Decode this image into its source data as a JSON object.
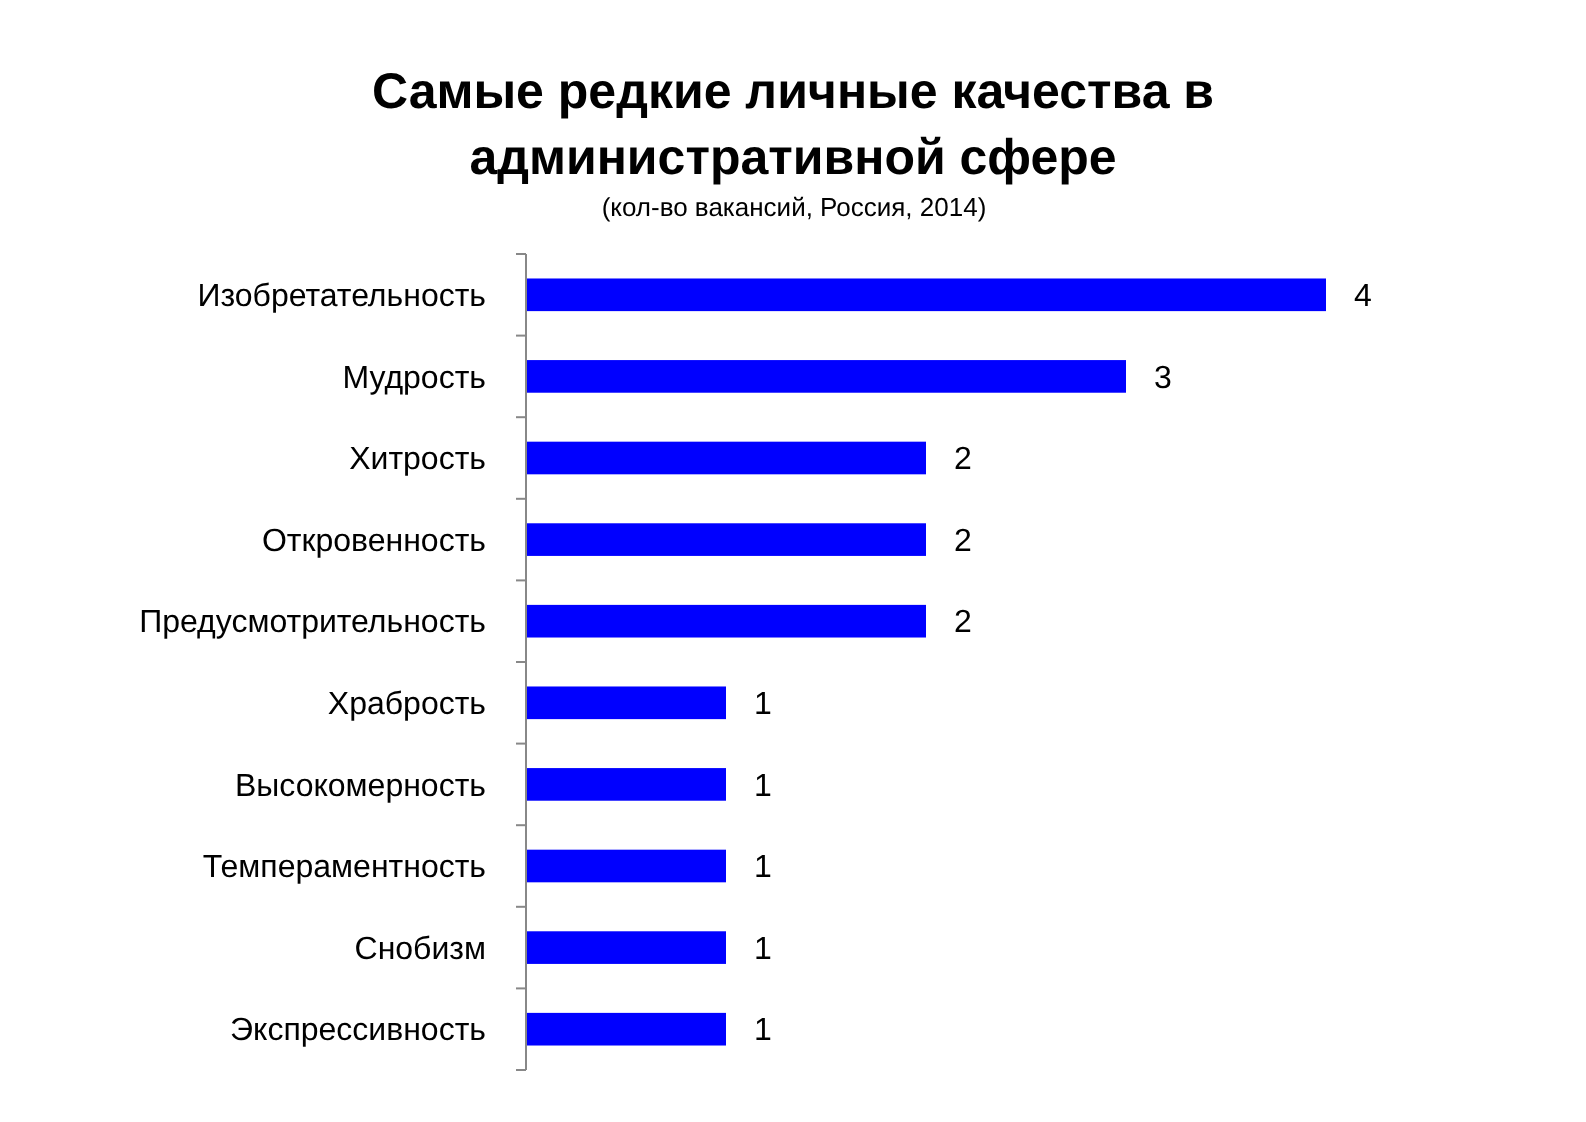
{
  "chart_data": {
    "type": "bar",
    "orientation": "horizontal",
    "title": "Самые редкие личные качества в административной сфере",
    "subtitle": "(кол-во вакансий, Россия, 2014)",
    "categories": [
      "Изобретательность",
      "Мудрость",
      "Хитрость",
      "Откровенность",
      "Предусмотрительность",
      "Храбрость",
      "Высокомерность",
      "Темпераментность",
      "Снобизм",
      "Экспрессивность"
    ],
    "values": [
      4,
      3,
      2,
      2,
      2,
      1,
      1,
      1,
      1,
      1
    ],
    "color": "#0000ff",
    "xlim": [
      0,
      4
    ],
    "data_labels": true,
    "tick_labels": "y"
  }
}
